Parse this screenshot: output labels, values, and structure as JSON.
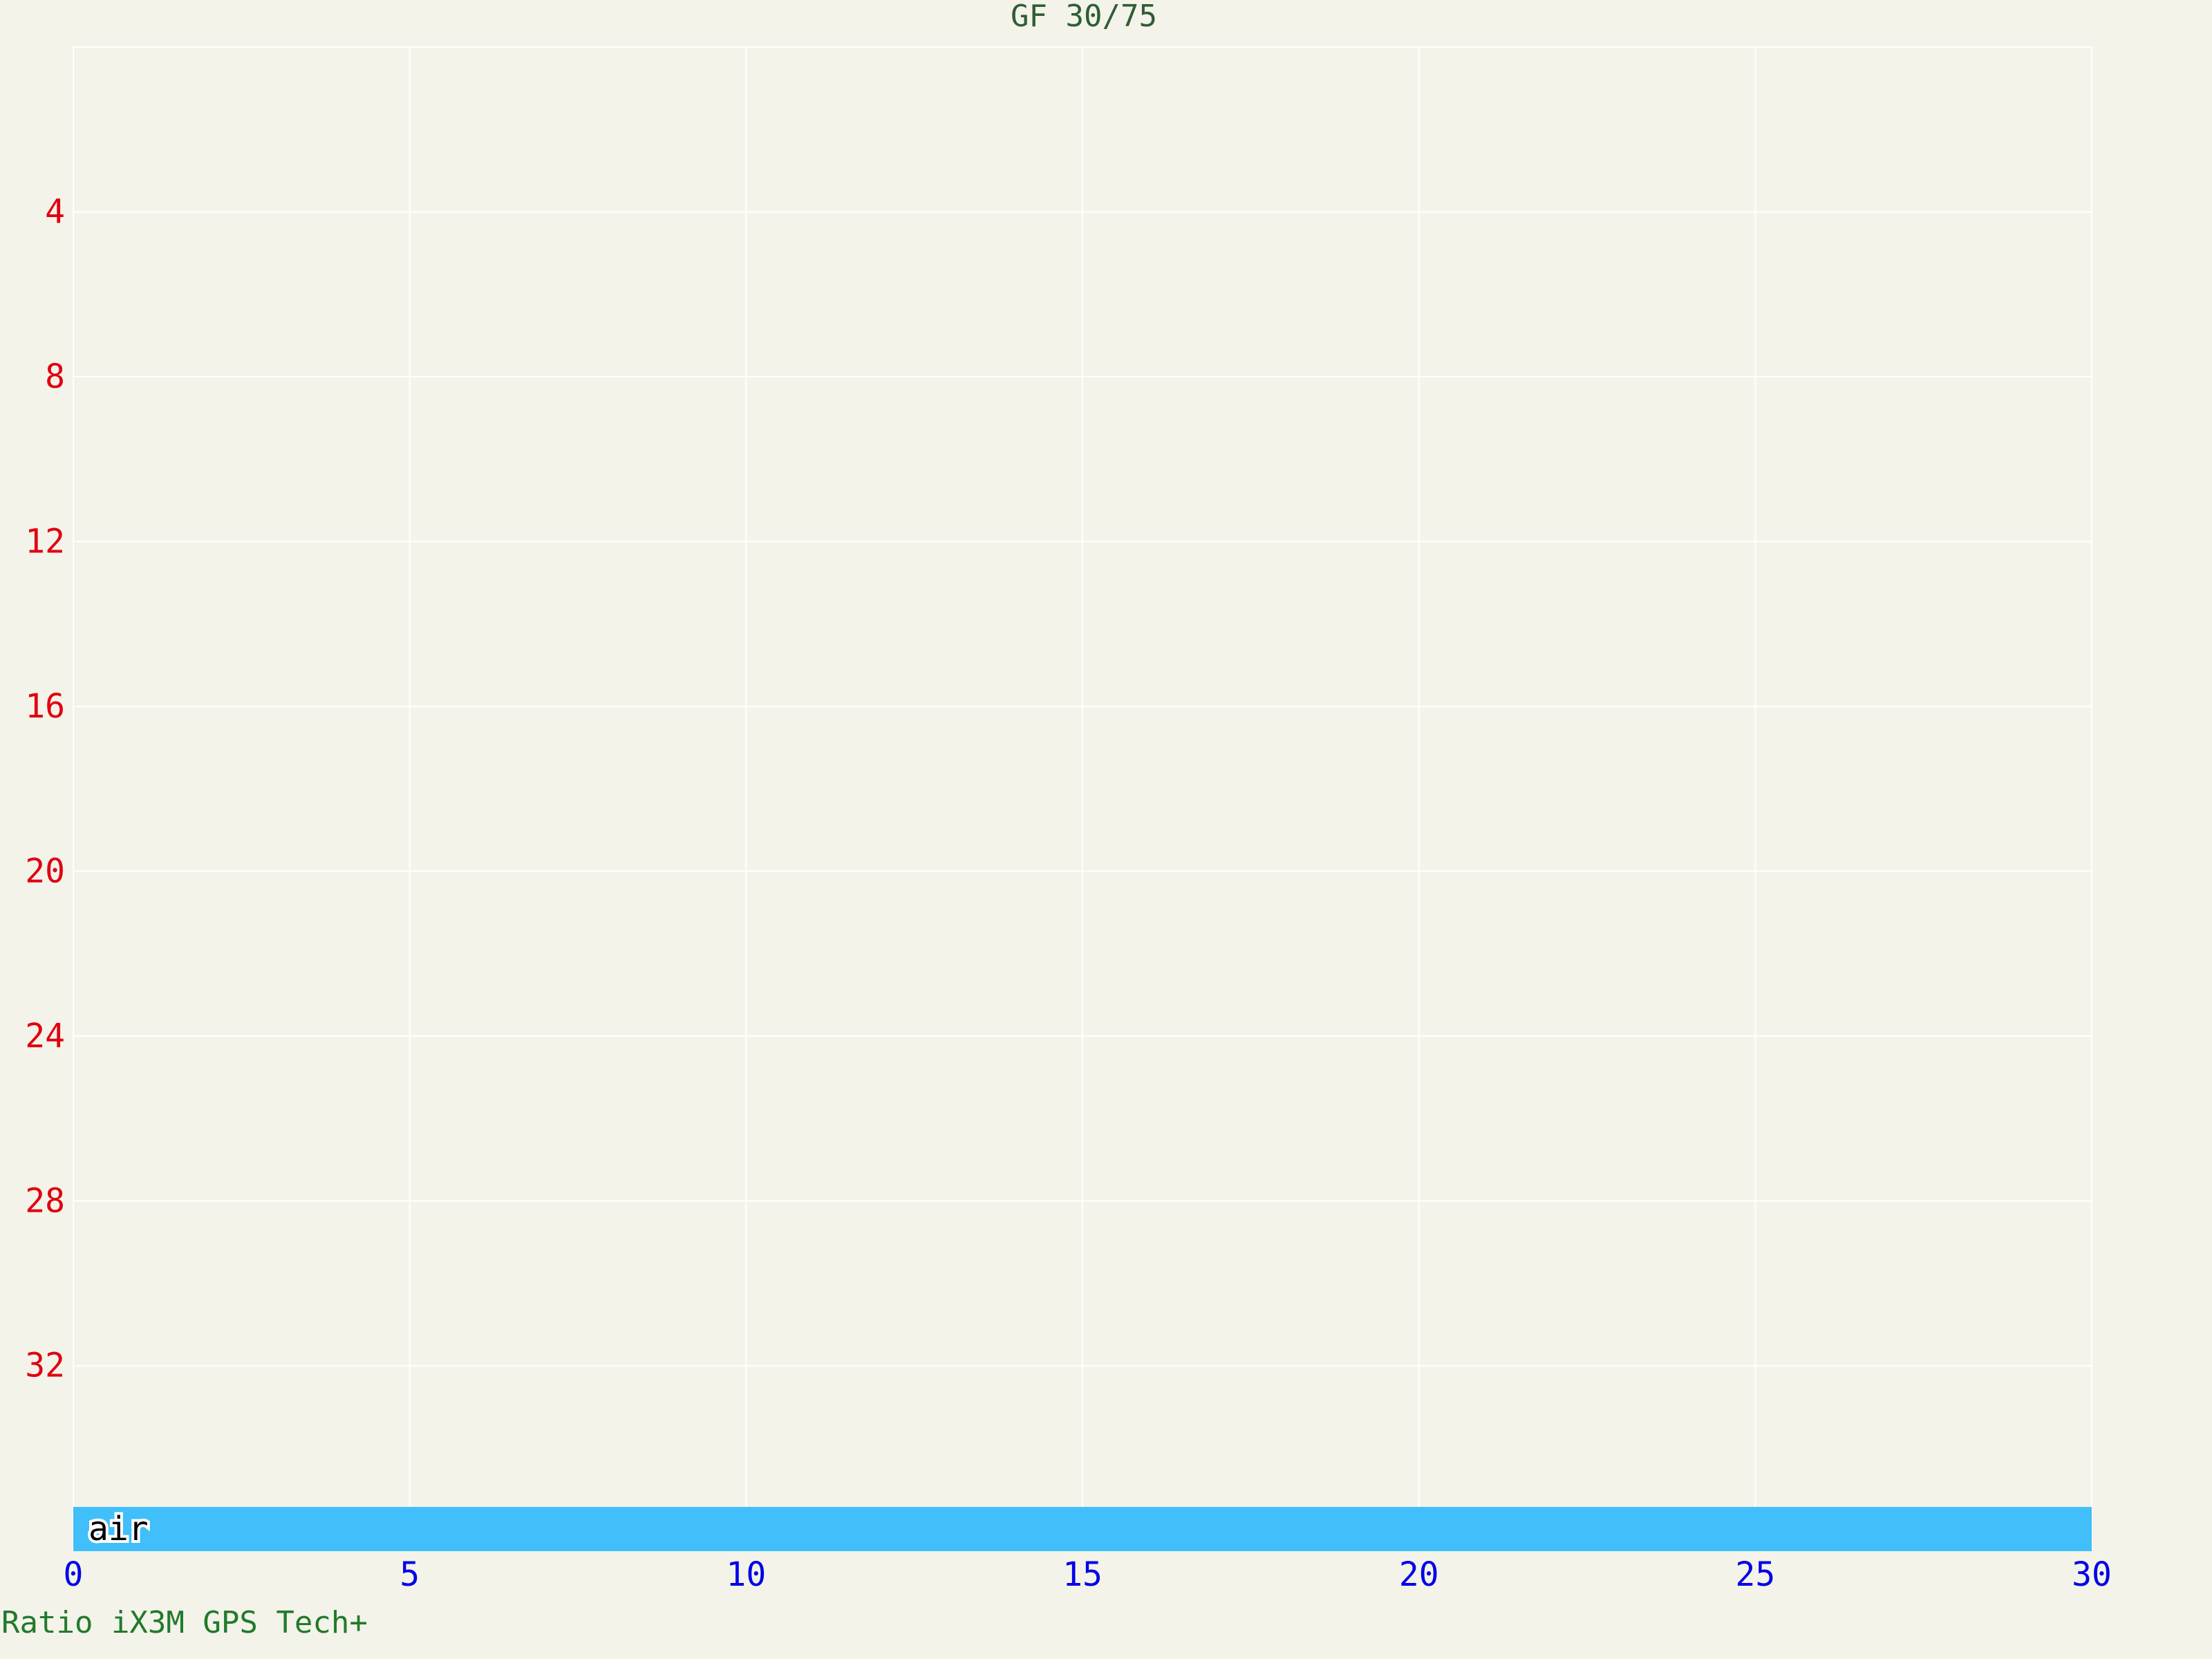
{
  "chart_data": {
    "type": "profile",
    "title": "GF 30/75",
    "x": {
      "min": 0,
      "max": 30,
      "ticks": [
        0,
        5,
        10,
        15,
        20,
        25,
        30
      ]
    },
    "y": {
      "min": 0,
      "max": 36.5,
      "inverted": true,
      "ticks": [
        4,
        8,
        12,
        16,
        20,
        24,
        28,
        32
      ]
    },
    "gas_bar": {
      "label": "air",
      "start": 0,
      "end": 30,
      "color": "#40bffa"
    },
    "grid": true,
    "colors": {
      "background": "#f3f3e9",
      "grid": "#ffffff",
      "title": "#2f5d33",
      "x_ticks": "#0000e8",
      "y_ticks": "#e00010",
      "gas_label": "#000000"
    }
  },
  "footer": {
    "device": "Ratio iX3M GPS Tech+"
  }
}
